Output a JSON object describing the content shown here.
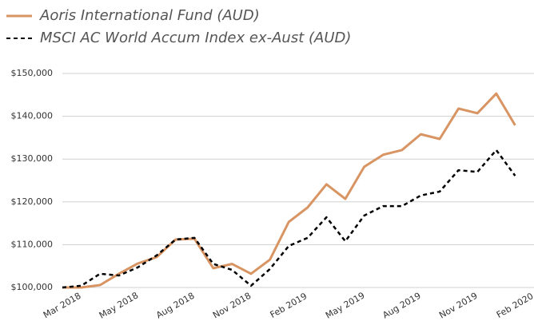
{
  "chart_data": {
    "type": "line",
    "categories": [
      "Mar 2018",
      null,
      null,
      "May 2018",
      null,
      null,
      "Aug 2018",
      null,
      null,
      "Nov 2018",
      null,
      null,
      "Feb 2019",
      null,
      null,
      "May 2019",
      null,
      null,
      "Aug 2019",
      null,
      null,
      "Nov 2019",
      null,
      null,
      "Feb 2020"
    ],
    "series": [
      {
        "name": "Aoris International Fund (AUD)",
        "color": "#d89462",
        "dashed": false,
        "values": [
          100000,
          100000,
          100560,
          103200,
          105600,
          107100,
          111200,
          111400,
          104500,
          105500,
          103200,
          106500,
          115300,
          118700,
          124100,
          120700,
          128200,
          131000,
          132100,
          135800,
          134700,
          141800,
          140700,
          145300,
          137900
        ]
      },
      {
        "name": "MSCI AC World Accum Index ex-Aust (AUD)",
        "color": "#000000",
        "dashed": true,
        "values": [
          100000,
          100400,
          103200,
          102800,
          104700,
          107500,
          111200,
          111600,
          105500,
          104100,
          100400,
          104300,
          109700,
          111600,
          116400,
          110800,
          116800,
          119000,
          119000,
          121500,
          122400,
          127400,
          127000,
          132100,
          126100
        ]
      }
    ],
    "ylim": [
      100000,
      150000
    ],
    "yticks": [
      {
        "value": 100000,
        "label": "$100,000"
      },
      {
        "value": 110000,
        "label": "$110,000"
      },
      {
        "value": 120000,
        "label": "$120,000"
      },
      {
        "value": 130000,
        "label": "$130,000"
      },
      {
        "value": 140000,
        "label": "$140,000"
      },
      {
        "value": 150000,
        "label": "$150,000"
      }
    ],
    "grid": true
  }
}
